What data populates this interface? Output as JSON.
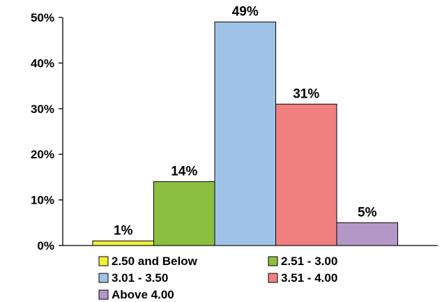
{
  "chart_data": {
    "type": "bar",
    "title": "",
    "xlabel": "",
    "ylabel": "",
    "ylim": [
      0,
      50
    ],
    "yticks": [
      0,
      10,
      20,
      30,
      40,
      50
    ],
    "ytick_labels": [
      "0%",
      "10%",
      "20%",
      "30%",
      "40%",
      "50%"
    ],
    "grid": false,
    "legend_position": "bottom",
    "series": [
      {
        "name": "2.50 and Below",
        "value": 1,
        "label": "1%",
        "color": "#f0f03c"
      },
      {
        "name": "2.51 - 3.00",
        "value": 14,
        "label": "14%",
        "color": "#8cbf3f"
      },
      {
        "name": "3.01 - 3.50",
        "value": 49,
        "label": "49%",
        "color": "#9fc3e7"
      },
      {
        "name": "3.51 - 4.00",
        "value": 31,
        "label": "31%",
        "color": "#f08080"
      },
      {
        "name": "Above 4.00",
        "value": 5,
        "label": "5%",
        "color": "#b497c7"
      }
    ]
  }
}
